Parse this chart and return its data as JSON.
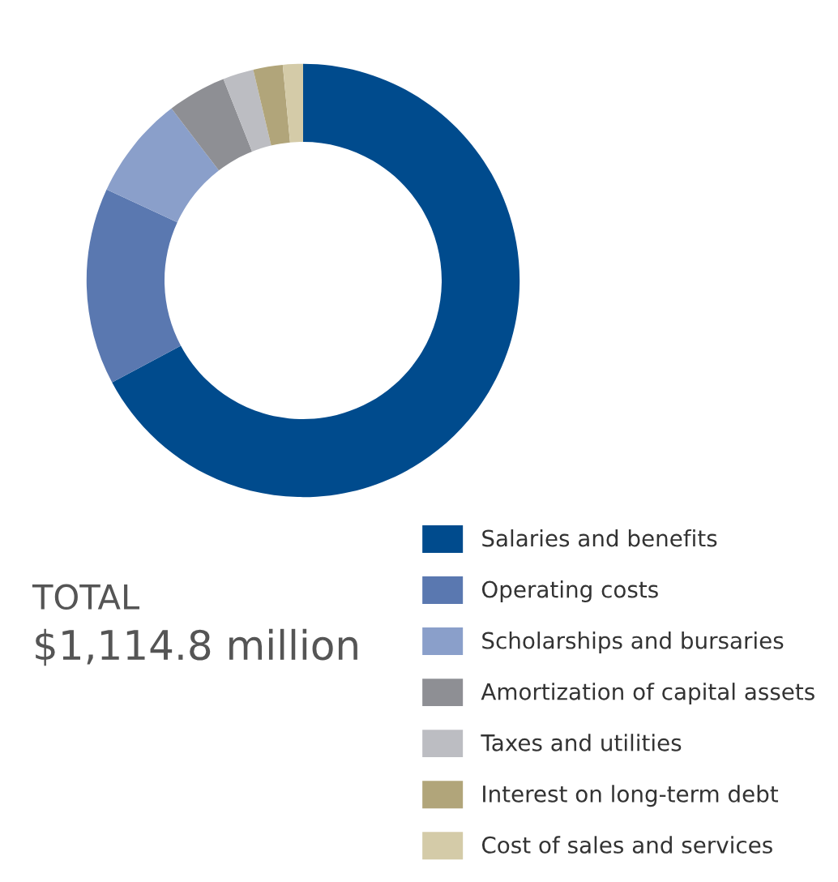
{
  "chart_data": {
    "type": "donut",
    "categories": [
      "Salaries and benefits",
      "Operating costs",
      "Scholarships and bursaries",
      "Amortization of capital assets",
      "Taxes and utilities",
      "Interest on long-term debt",
      "Cost of sales and services"
    ],
    "values": [
      67.2,
      14.7,
      7.7,
      4.4,
      2.3,
      2.2,
      1.5
    ],
    "colors": [
      "#004b8d",
      "#5a78b0",
      "#8a9fca",
      "#8e8f94",
      "#bcbdc2",
      "#b1a57a",
      "#d4cba8"
    ],
    "legend": "bottom right",
    "annotations": [
      "TOTAL",
      "$1,114.8 million"
    ]
  }
}
